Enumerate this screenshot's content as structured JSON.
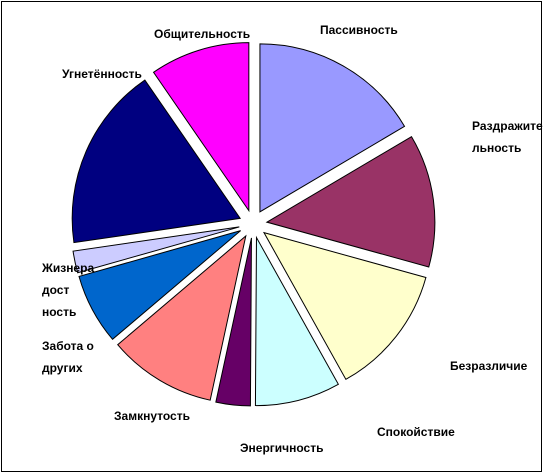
{
  "chart_data": {
    "type": "pie",
    "exploded": true,
    "start": "12 o'clock",
    "direction": "clockwise",
    "slices": [
      {
        "label": "Пассивность",
        "label_lines": [
          "Пассивность"
        ],
        "value": 16.5,
        "color": "#9999FF"
      },
      {
        "label": "Раздражительность",
        "label_lines": [
          "Раздражите",
          "льность"
        ],
        "value": 12.8,
        "color": "#993366"
      },
      {
        "label": "Безразличие",
        "label_lines": [
          "Безразличие"
        ],
        "value": 12.6,
        "color": "#FFFFCC"
      },
      {
        "label": "Спокойствие",
        "label_lines": [
          "Спокойствие"
        ],
        "value": 8.2,
        "color": "#CCFFFF"
      },
      {
        "label": "Энергичность",
        "label_lines": [
          "Энергичность"
        ],
        "value": 3.3,
        "color": "#660066"
      },
      {
        "label": "Замкнутость",
        "label_lines": [
          "Замкнутость"
        ],
        "value": 10.4,
        "color": "#FF8080"
      },
      {
        "label": "Забота о других",
        "label_lines": [
          "Забота о",
          "других"
        ],
        "value": 6.8,
        "color": "#0066CC"
      },
      {
        "label": "Жизнерадостность",
        "label_lines": [
          "Жизнера",
          "дост",
          "ность"
        ],
        "value": 2.1,
        "color": "#CCCCFF"
      },
      {
        "label": "Угнетённость",
        "label_lines": [
          "Угнетённость"
        ],
        "value": 17.7,
        "color": "#000080"
      },
      {
        "label": "Общительность",
        "label_lines": [
          "Общительность"
        ],
        "value": 9.6,
        "color": "#FF00FF"
      }
    ]
  }
}
